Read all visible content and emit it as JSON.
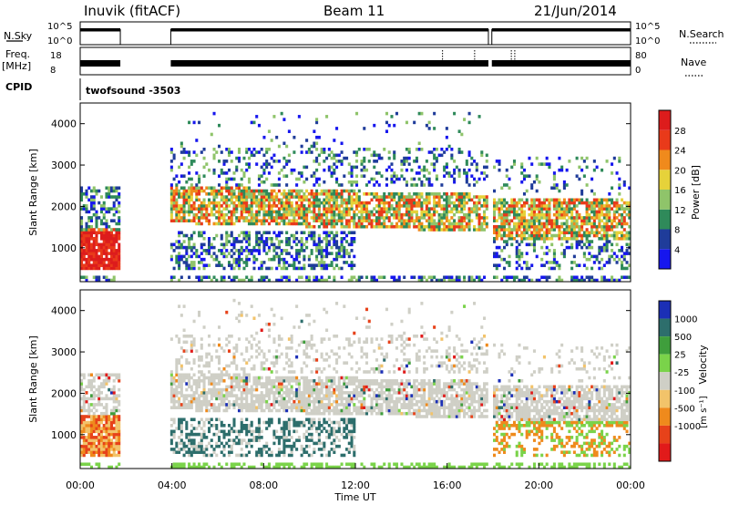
{
  "header": {
    "station": "Inuvik (fitACF)",
    "beam": "Beam 11",
    "date": "21/Jun/2014"
  },
  "top_panels": {
    "nsky_label": "N.Sky",
    "nsky_ticks": [
      "10^5",
      "10^0"
    ],
    "nsearch_label": "N.Search",
    "nsearch_ticks": [
      "10^5",
      "10^0"
    ],
    "freq_label_1": "Freq.",
    "freq_label_2": "[MHz]",
    "freq_ticks": [
      "18",
      "8"
    ],
    "nave_label": "Nave",
    "nave_ticks": [
      "80",
      "0"
    ],
    "cpid_label": "CPID",
    "cpid_value": "twofsound -3503"
  },
  "chart_data": [
    {
      "type": "heatmap",
      "name": "power-panel",
      "ylabel": "Slant Range [km]",
      "yticks": [
        1000,
        2000,
        3000,
        4000
      ],
      "ylim": [
        180,
        4500
      ],
      "xlim_hours": [
        0,
        24
      ],
      "colorbar": {
        "label": "Power [dB]",
        "ticks": [
          4,
          8,
          12,
          16,
          20,
          24,
          28
        ],
        "colors": [
          "#1616ee",
          "#1f3c9a",
          "#2f8a5a",
          "#8fc46a",
          "#e6d23a",
          "#f08a1c",
          "#e93a1a",
          "#dd1c1c"
        ]
      },
      "data_gap_hours": [
        [
          1.75,
          3.95
        ],
        [
          17.8,
          17.95
        ]
      ]
    },
    {
      "type": "heatmap",
      "name": "velocity-panel",
      "ylabel": "Slant Range [km]",
      "yticks": [
        1000,
        2000,
        3000,
        4000
      ],
      "ylim": [
        180,
        4500
      ],
      "xlim_hours": [
        0,
        24
      ],
      "xlabel": "Time UT",
      "xtick_labels": [
        "00:00",
        "04:00",
        "08:00",
        "12:00",
        "16:00",
        "20:00",
        "00:00"
      ],
      "colorbar": {
        "label": "Velocity",
        "unit": "[m s⁻¹]",
        "ticks": [
          1000,
          500,
          25,
          -25,
          -100,
          -500,
          -1000
        ],
        "colors": [
          "#1b2fb6",
          "#2d6e6c",
          "#3f9e3c",
          "#7ad34a",
          "#cfcfc6",
          "#f2c36a",
          "#ef8a1c",
          "#e7421a",
          "#e11a1a"
        ]
      },
      "data_gap_hours": [
        [
          1.75,
          3.95
        ],
        [
          17.8,
          17.95
        ]
      ]
    }
  ]
}
